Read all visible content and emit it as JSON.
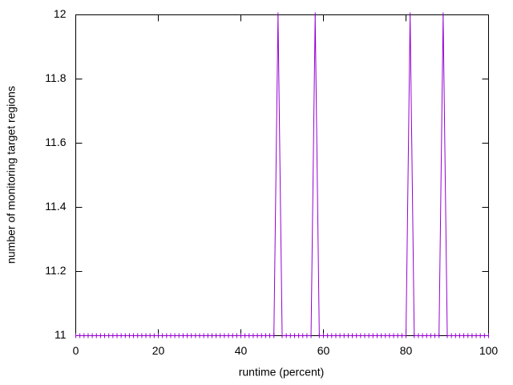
{
  "chart_data": {
    "type": "line",
    "x_label": "runtime (percent)",
    "y_label": "number of monitoring target regions",
    "x": [
      0,
      1,
      2,
      3,
      4,
      5,
      6,
      7,
      8,
      9,
      10,
      11,
      12,
      13,
      14,
      15,
      16,
      17,
      18,
      19,
      20,
      21,
      22,
      23,
      24,
      25,
      26,
      27,
      28,
      29,
      30,
      31,
      32,
      33,
      34,
      35,
      36,
      37,
      38,
      39,
      40,
      41,
      42,
      43,
      44,
      45,
      46,
      47,
      48,
      49,
      50,
      51,
      52,
      53,
      54,
      55,
      56,
      57,
      58,
      59,
      60,
      61,
      62,
      63,
      64,
      65,
      66,
      67,
      68,
      69,
      70,
      71,
      72,
      73,
      74,
      75,
      76,
      77,
      78,
      79,
      80,
      81,
      82,
      83,
      84,
      85,
      86,
      87,
      88,
      89,
      90,
      91,
      92,
      93,
      94,
      95,
      96,
      97,
      98,
      99,
      100
    ],
    "values": [
      11,
      11,
      11,
      11,
      11,
      11,
      11,
      11,
      11,
      11,
      11,
      11,
      11,
      11,
      11,
      11,
      11,
      11,
      11,
      11,
      11,
      11,
      11,
      11,
      11,
      11,
      11,
      11,
      11,
      11,
      11,
      11,
      11,
      11,
      11,
      11,
      11,
      11,
      11,
      11,
      11,
      11,
      11,
      11,
      11,
      11,
      11,
      11,
      11,
      12,
      11,
      11,
      11,
      11,
      11,
      11,
      11,
      11,
      12,
      11,
      11,
      11,
      11,
      11,
      11,
      11,
      11,
      11,
      11,
      11,
      11,
      11,
      11,
      11,
      11,
      11,
      11,
      11,
      11,
      11,
      11,
      12,
      11,
      11,
      11,
      11,
      11,
      11,
      11,
      12,
      11,
      11,
      11,
      11,
      11,
      11,
      11,
      11,
      11,
      11,
      11
    ],
    "color": "#9400d3",
    "xlim": [
      0,
      100
    ],
    "xticks": [
      0,
      20,
      40,
      60,
      80,
      100
    ],
    "ylim": [
      11,
      12
    ],
    "yticks": [
      11,
      11.2,
      11.4,
      11.6,
      11.8,
      12
    ]
  }
}
